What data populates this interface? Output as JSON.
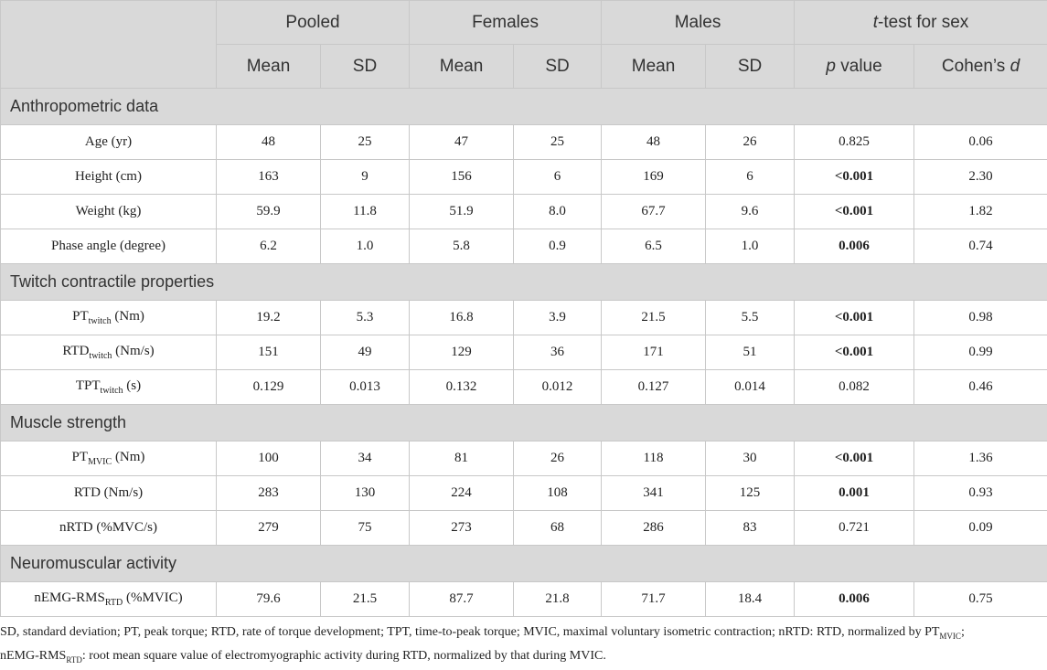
{
  "header": {
    "groups": [
      "Pooled",
      "Females",
      "Males",
      "t-test for sex"
    ],
    "sub": [
      "Mean",
      "SD",
      "Mean",
      "SD",
      "Mean",
      "SD",
      "p value",
      "Cohen’s d"
    ]
  },
  "sections": [
    {
      "title": "Anthropometric data",
      "rows": [
        {
          "label": "Age (yr)",
          "cells": [
            "48",
            "25",
            "47",
            "25",
            "48",
            "26",
            "0.825",
            "0.06"
          ],
          "p_bold": false
        },
        {
          "label": "Height (cm)",
          "cells": [
            "163",
            "9",
            "156",
            "6",
            "169",
            "6",
            "<0.001",
            "2.30"
          ],
          "p_bold": true
        },
        {
          "label": "Weight (kg)",
          "cells": [
            "59.9",
            "11.8",
            "51.9",
            "8.0",
            "67.7",
            "9.6",
            "<0.001",
            "1.82"
          ],
          "p_bold": true
        },
        {
          "label": "Phase angle (degree)",
          "cells": [
            "6.2",
            "1.0",
            "5.8",
            "0.9",
            "6.5",
            "1.0",
            "0.006",
            "0.74"
          ],
          "p_bold": true
        }
      ]
    },
    {
      "title": "Twitch contractile properties",
      "rows": [
        {
          "label_main": "PT",
          "label_sub": "twitch",
          "label_unit": " (Nm)",
          "cells": [
            "19.2",
            "5.3",
            "16.8",
            "3.9",
            "21.5",
            "5.5",
            "<0.001",
            "0.98"
          ],
          "p_bold": true
        },
        {
          "label_main": "RTD",
          "label_sub": "twitch",
          "label_unit": " (Nm/s)",
          "cells": [
            "151",
            "49",
            "129",
            "36",
            "171",
            "51",
            "<0.001",
            "0.99"
          ],
          "p_bold": true
        },
        {
          "label_main": "TPT",
          "label_sub": "twitch",
          "label_unit": " (s)",
          "cells": [
            "0.129",
            "0.013",
            "0.132",
            "0.012",
            "0.127",
            "0.014",
            "0.082",
            "0.46"
          ],
          "p_bold": false
        }
      ]
    },
    {
      "title": "Muscle strength",
      "rows": [
        {
          "label_main": "PT",
          "label_sub": "MVIC",
          "label_unit": " (Nm)",
          "cells": [
            "100",
            "34",
            "81",
            "26",
            "118",
            "30",
            "<0.001",
            "1.36"
          ],
          "p_bold": true
        },
        {
          "label": "RTD (Nm/s)",
          "cells": [
            "283",
            "130",
            "224",
            "108",
            "341",
            "125",
            "0.001",
            "0.93"
          ],
          "p_bold": true
        },
        {
          "label": "nRTD (%MVC/s)",
          "cells": [
            "279",
            "75",
            "273",
            "68",
            "286",
            "83",
            "0.721",
            "0.09"
          ],
          "p_bold": false
        }
      ]
    },
    {
      "title": "Neuromuscular activity",
      "rows": [
        {
          "label_main": "nEMG-RMS",
          "label_sub": "RTD",
          "label_unit": " (%MVIC)",
          "cells": [
            "79.6",
            "21.5",
            "87.7",
            "21.8",
            "71.7",
            "18.4",
            "0.006",
            "0.75"
          ],
          "p_bold": true
        }
      ]
    }
  ],
  "footnote": {
    "line1_a": "SD, standard deviation; PT, peak torque; RTD, rate of torque development; TPT, time-to-peak torque; MVIC, maximal voluntary isometric contraction; nRTD: RTD, normalized by PT",
    "line1_sub": "MVIC",
    "line1_b": ";",
    "line2_a": "nEMG-RMS",
    "line2_sub": "RTD",
    "line2_b": ": root mean square value of electromyographic activity during RTD, normalized by that during MVIC."
  }
}
